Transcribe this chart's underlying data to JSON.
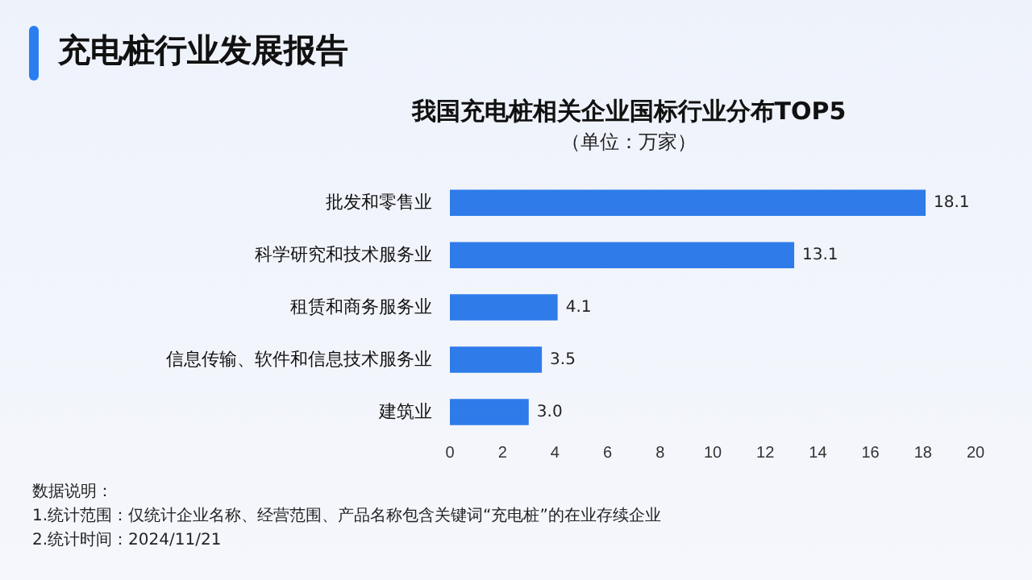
{
  "chart_data": {
    "type": "bar",
    "orientation": "horizontal",
    "title": "充电桩行业发展报告",
    "subtitle": "我国充电桩相关企业国标行业分布TOP5",
    "categories": [
      "批发和零售业",
      "科学研究和技术服务业",
      "租赁和商务服务业",
      "信息传输、软件和信息技术服务业",
      "建筑业"
    ],
    "values": [
      18.1,
      13.1,
      4.1,
      3.5,
      3.0
    ],
    "value_labels": [
      "18.1",
      "13.1",
      "4.1",
      "3.5",
      "3.0"
    ],
    "color": "#2f7bea",
    "xlim": [
      0,
      20
    ],
    "xticks": [
      0,
      2,
      4,
      6,
      8,
      10,
      12,
      14,
      16,
      18,
      20
    ],
    "grid": false,
    "legend": false,
    "annotations": [
      "（单位：万家）",
      "数据说明：",
      "1.统计范围：仅统计企业名称、经营范围、产品名称包含关键词“充电桩”的在业存续企业",
      "2.统计时间：2024/11/21"
    ]
  }
}
